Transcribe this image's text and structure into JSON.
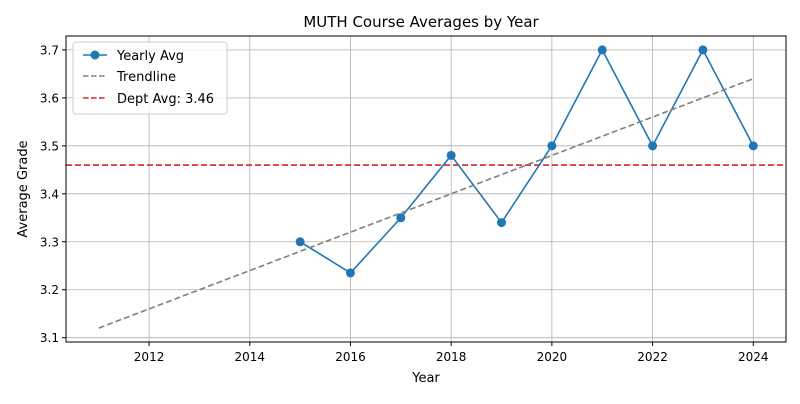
{
  "chart_data": {
    "type": "line",
    "title": "MUTH Course Averages by Year",
    "xlabel": "Year",
    "ylabel": "Average Grade",
    "xlim": [
      2010.35,
      2024.65
    ],
    "ylim": [
      3.091,
      3.729
    ],
    "xticks": [
      2012,
      2014,
      2016,
      2018,
      2020,
      2022,
      2024
    ],
    "yticks": [
      3.1,
      3.2,
      3.3,
      3.4,
      3.5,
      3.6,
      3.7
    ],
    "grid": true,
    "legend_position": "top-left",
    "series": [
      {
        "name": "Yearly Avg",
        "color": "#1f77b4",
        "style": "solid-with-markers",
        "x": [
          2015,
          2016,
          2017,
          2018,
          2019,
          2020,
          2021,
          2022,
          2023,
          2024
        ],
        "y": [
          3.3,
          3.235,
          3.35,
          3.48,
          3.34,
          3.5,
          3.7,
          3.5,
          3.7,
          3.5
        ]
      },
      {
        "name": "Trendline",
        "color": "#7f7f7f",
        "style": "dashed",
        "x": [
          2011,
          2024
        ],
        "y": [
          3.12,
          3.64
        ]
      }
    ],
    "reference_lines": [
      {
        "name": "Dept Avg: 3.46",
        "color": "#d62728",
        "style": "dashed",
        "orientation": "horizontal",
        "y": 3.46
      }
    ]
  }
}
